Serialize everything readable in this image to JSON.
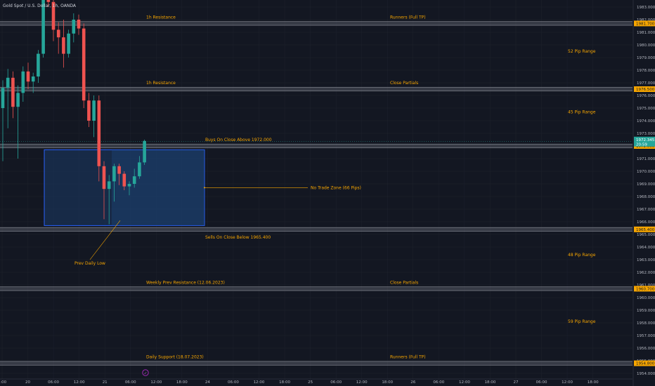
{
  "symbol_title": "Gold Spot / U.S. Dollar, 1h, OANDA",
  "colors": {
    "background": "#131722",
    "grid": "#1e222d",
    "up": "#26a69a",
    "down": "#ef5350",
    "annotation": "#f7a600",
    "zone_fill": "#1c3a66",
    "zone_border": "#2962ff",
    "level_band": "#787b86",
    "axis_text": "#b2b5be",
    "current_price_bg": "#26a69a"
  },
  "chart_data": {
    "type": "candlestick",
    "title": "Gold Spot / U.S. Dollar, 1h, OANDA",
    "ylim": [
      1953.2,
      1985.0
    ],
    "y_ticks": [
      "1954.000",
      "1955.000",
      "1956.000",
      "1957.000",
      "1958.000",
      "1959.000",
      "1960.000",
      "1961.000",
      "1962.000",
      "1963.000",
      "1964.000",
      "1965.000",
      "1966.000",
      "1967.000",
      "1968.000",
      "1969.000",
      "1970.000",
      "1971.000",
      "1972.000",
      "1973.000",
      "1974.000",
      "1975.000",
      "1976.000",
      "1977.000",
      "1978.000",
      "1979.000",
      "1980.000",
      "1981.000",
      "1982.000",
      "1983.000"
    ],
    "x_ticks": [
      "2:00",
      "20",
      "06:00",
      "12:00",
      "21",
      "06:00",
      "12:00",
      "18:00",
      "24",
      "06:00",
      "12:00",
      "18:00",
      "25",
      "06:00",
      "12:00",
      "18:00",
      "26",
      "06:00",
      "12:00",
      "18:00",
      "27",
      "06:00",
      "12:00",
      "18:00"
    ],
    "candles": [
      {
        "o": 1975.0,
        "h": 1977.2,
        "l": 1970.8,
        "c": 1976.6
      },
      {
        "o": 1976.6,
        "h": 1978.1,
        "l": 1973.4,
        "c": 1977.4
      },
      {
        "o": 1977.4,
        "h": 1977.9,
        "l": 1974.2,
        "c": 1975.1
      },
      {
        "o": 1975.1,
        "h": 1976.8,
        "l": 1971.0,
        "c": 1976.2
      },
      {
        "o": 1976.2,
        "h": 1978.3,
        "l": 1975.5,
        "c": 1977.9
      },
      {
        "o": 1977.9,
        "h": 1978.6,
        "l": 1976.5,
        "c": 1977.1
      },
      {
        "o": 1977.1,
        "h": 1977.8,
        "l": 1976.2,
        "c": 1977.5
      },
      {
        "o": 1977.5,
        "h": 1979.6,
        "l": 1977.0,
        "c": 1979.3
      },
      {
        "o": 1979.3,
        "h": 1985.0,
        "l": 1979.0,
        "c": 1984.6
      },
      {
        "o": 1984.6,
        "h": 1985.0,
        "l": 1983.0,
        "c": 1983.4
      },
      {
        "o": 1983.4,
        "h": 1985.0,
        "l": 1980.3,
        "c": 1981.2
      },
      {
        "o": 1981.2,
        "h": 1981.8,
        "l": 1979.3,
        "c": 1980.6
      },
      {
        "o": 1980.6,
        "h": 1982.0,
        "l": 1978.2,
        "c": 1979.3
      },
      {
        "o": 1979.3,
        "h": 1981.2,
        "l": 1979.0,
        "c": 1980.9
      },
      {
        "o": 1980.9,
        "h": 1982.5,
        "l": 1980.2,
        "c": 1982.0
      },
      {
        "o": 1982.0,
        "h": 1982.4,
        "l": 1980.8,
        "c": 1981.3
      },
      {
        "o": 1981.3,
        "h": 1981.7,
        "l": 1975.0,
        "c": 1975.6
      },
      {
        "o": 1975.6,
        "h": 1976.2,
        "l": 1973.5,
        "c": 1974.0
      },
      {
        "o": 1974.0,
        "h": 1976.0,
        "l": 1972.7,
        "c": 1975.6
      },
      {
        "o": 1975.6,
        "h": 1976.0,
        "l": 1969.2,
        "c": 1970.4
      },
      {
        "o": 1970.4,
        "h": 1970.8,
        "l": 1966.2,
        "c": 1968.6
      },
      {
        "o": 1968.6,
        "h": 1969.7,
        "l": 1965.8,
        "c": 1969.2
      },
      {
        "o": 1969.2,
        "h": 1970.6,
        "l": 1967.6,
        "c": 1970.4
      },
      {
        "o": 1970.4,
        "h": 1970.6,
        "l": 1968.9,
        "c": 1969.8
      },
      {
        "o": 1969.8,
        "h": 1970.0,
        "l": 1968.5,
        "c": 1968.8
      },
      {
        "o": 1968.8,
        "h": 1969.2,
        "l": 1968.1,
        "c": 1969.0
      },
      {
        "o": 1969.0,
        "h": 1970.2,
        "l": 1968.7,
        "c": 1969.6
      },
      {
        "o": 1969.6,
        "h": 1971.2,
        "l": 1969.4,
        "c": 1970.7
      },
      {
        "o": 1970.7,
        "h": 1972.5,
        "l": 1970.5,
        "c": 1972.4
      }
    ],
    "levels": [
      {
        "price": 1981.7,
        "price_label": "1981.700",
        "label_left": "1h Resistance",
        "label_right": "Runners (Full TP)"
      },
      {
        "price": 1976.5,
        "price_label": "1976.500",
        "label_left": "1h Resistance",
        "label_right": "Close Partials"
      },
      {
        "price": 1972.0,
        "price_label": "1972.000",
        "label_left": "Buys On Close Above 1972.000",
        "label_right": ""
      },
      {
        "price": 1965.4,
        "price_label": "1965.400",
        "label_left": "Sells On Close Below 1965.400",
        "label_right": ""
      },
      {
        "price": 1960.7,
        "price_label": "1960.700",
        "label_left": "Weekly Prev Resistance (12.06.2023)",
        "label_right": "Close Partials"
      },
      {
        "price": 1954.8,
        "price_label": "1954.800",
        "label_left": "Daily Support (18.07.2023)",
        "label_right": "Runners (Full TP)"
      }
    ],
    "range_labels": [
      {
        "text": "52 Pip Range",
        "price": 1979.5
      },
      {
        "text": "45 Pip Range",
        "price": 1974.7
      },
      {
        "text": "48 Pip Range",
        "price": 1963.4
      },
      {
        "text": "59 Pip Range",
        "price": 1958.1
      }
    ],
    "no_trade_zone": {
      "top": 1971.7,
      "bottom": 1965.7,
      "label": "No Trade Zone (66 Pips)"
    },
    "prev_daily_low": {
      "price": 1966.1,
      "label": "Prev Daily Low"
    },
    "current_price": {
      "value": "1972.345",
      "countdown": "20:59"
    }
  }
}
